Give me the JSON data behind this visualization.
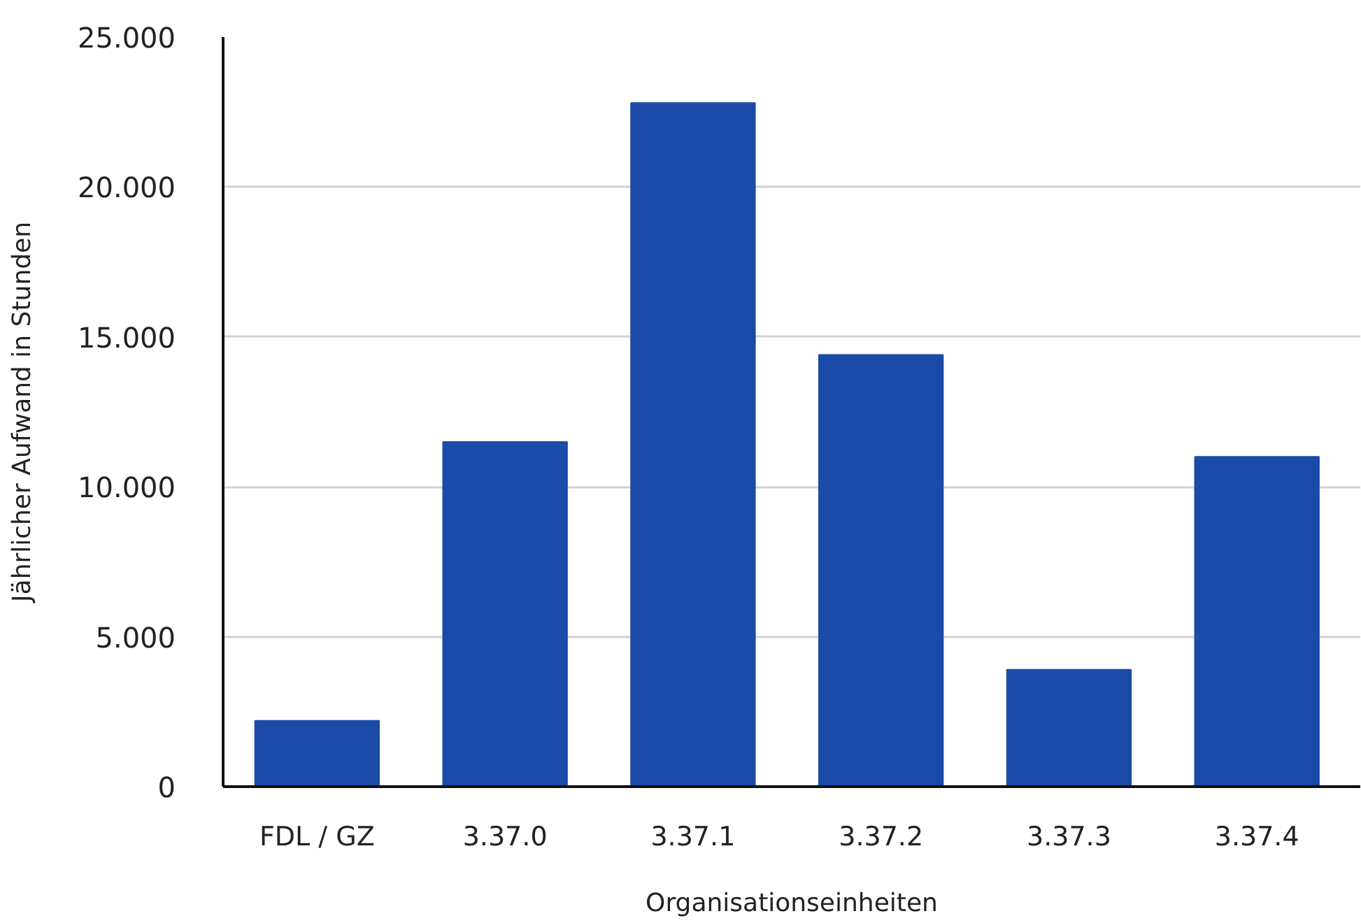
{
  "chart_data": {
    "type": "bar",
    "xlabel": "Organisationseinheiten",
    "ylabel": "Jährlicher Aufwand in Stunden",
    "categories": [
      "FDL / GZ",
      "3.37.0",
      "3.37.1",
      "3.37.2",
      "3.37.3",
      "3.37.4"
    ],
    "values": [
      2200,
      11500,
      22800,
      14400,
      3900,
      11000
    ],
    "color": "#1b4aa8",
    "ylim": [
      0,
      25000
    ],
    "yticks": [
      0,
      {
        "value": 5000,
        "label": "5.000"
      },
      {
        "value": 10000,
        "label": "10.000"
      },
      {
        "value": 15000,
        "label": "15.000"
      },
      {
        "value": 20000,
        "label": "20.000"
      },
      {
        "value": 25000,
        "label": "25.000"
      }
    ],
    "grid": "y"
  }
}
